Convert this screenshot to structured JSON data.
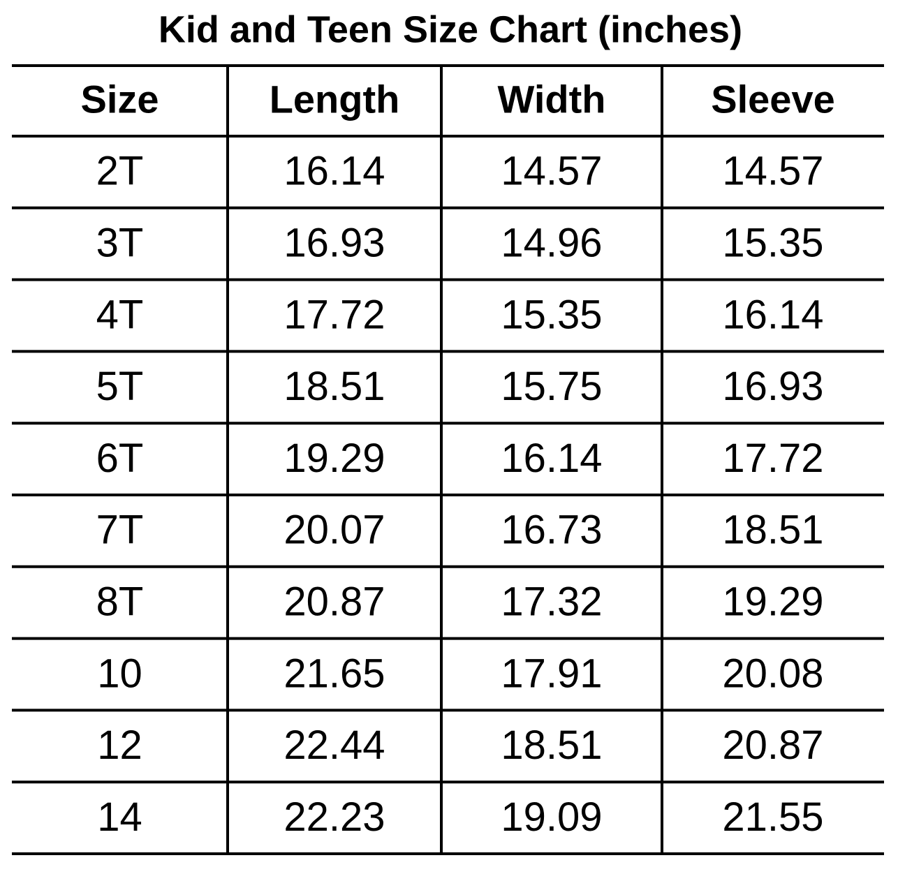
{
  "title": "Kid and Teen Size Chart (inches)",
  "table": {
    "header": [
      "Size",
      "Length",
      "Width",
      "Sleeve"
    ],
    "rows": [
      [
        "2T",
        "16.14",
        "14.57",
        "14.57"
      ],
      [
        "3T",
        "16.93",
        "14.96",
        "15.35"
      ],
      [
        "4T",
        "17.72",
        "15.35",
        "16.14"
      ],
      [
        "5T",
        "18.51",
        "15.75",
        "16.93"
      ],
      [
        "6T",
        "19.29",
        "16.14",
        "17.72"
      ],
      [
        "7T",
        "20.07",
        "16.73",
        "18.51"
      ],
      [
        "8T",
        "20.87",
        "17.32",
        "19.29"
      ],
      [
        "10",
        "21.65",
        "17.91",
        "20.08"
      ],
      [
        "12",
        "22.44",
        "18.51",
        "20.87"
      ],
      [
        "14",
        "22.23",
        "19.09",
        "21.55"
      ]
    ]
  }
}
